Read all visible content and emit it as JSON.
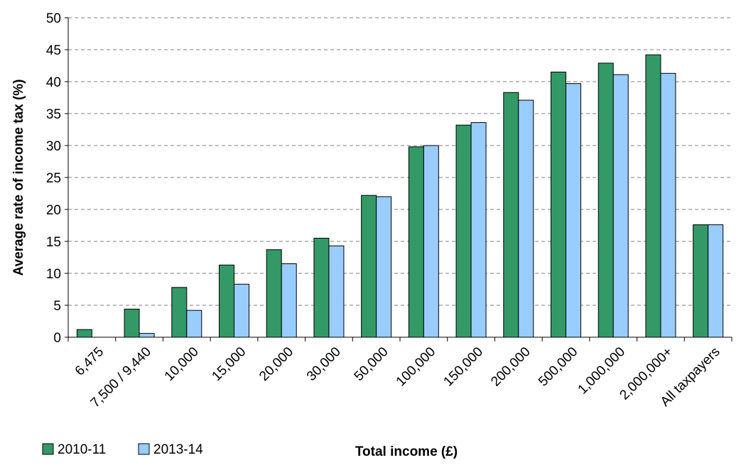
{
  "chart_data": {
    "type": "bar",
    "xlabel": "Total income (£)",
    "ylabel": "Average rate of income tax (%)",
    "ylim": [
      0,
      50
    ],
    "yticks": [
      0,
      5,
      10,
      15,
      20,
      25,
      30,
      35,
      40,
      45,
      50
    ],
    "grid": "horizontal dashed",
    "legend_position": "bottom-left",
    "categories": [
      "6,475",
      "7,500 / 9,440",
      "10,000",
      "15,000",
      "20,000",
      "30,000",
      "50,000",
      "100,000",
      "150,000",
      "200,000",
      "500,000",
      "1,000,000",
      "2,000,000+",
      "All taxpayers"
    ],
    "series": [
      {
        "name": "2010-11",
        "color": "#339966",
        "values": [
          1.2,
          4.4,
          7.8,
          11.3,
          13.7,
          15.5,
          22.2,
          29.8,
          33.2,
          38.3,
          41.5,
          42.9,
          44.2,
          17.6
        ]
      },
      {
        "name": "2013-14",
        "color": "#99ccff",
        "values": [
          null,
          0.6,
          4.2,
          8.3,
          11.5,
          14.3,
          22.0,
          30.0,
          33.6,
          37.1,
          39.7,
          41.1,
          41.3,
          17.6
        ]
      }
    ]
  }
}
